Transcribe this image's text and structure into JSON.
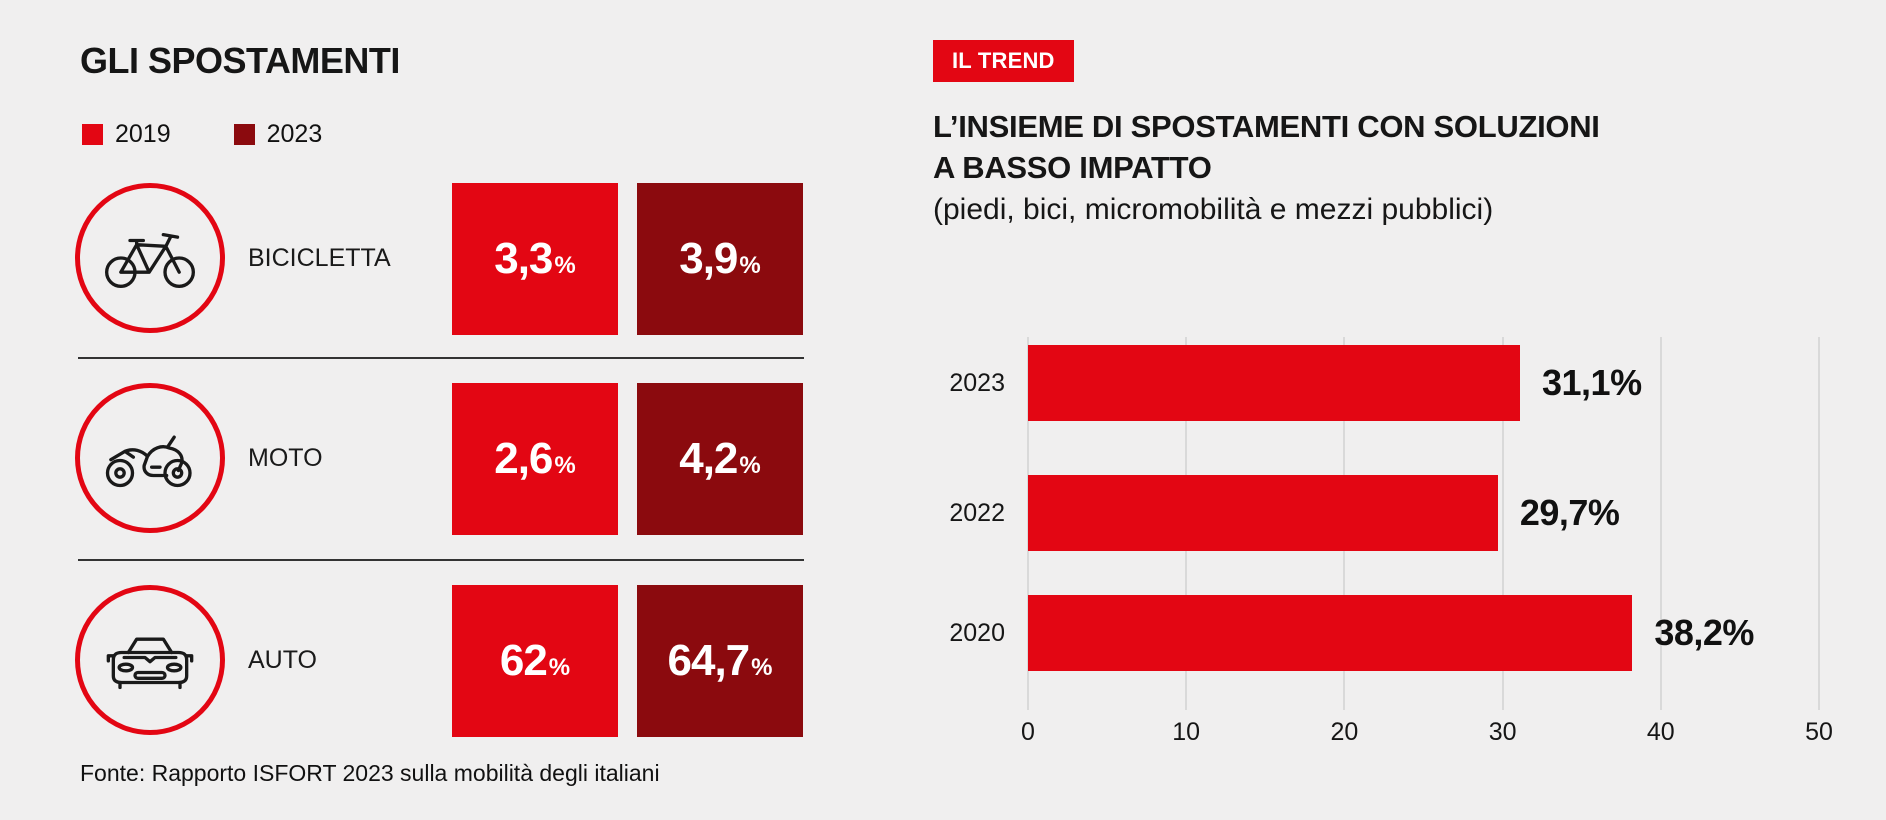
{
  "colors": {
    "red": "#e30613",
    "dark_red": "#8b0a0e",
    "background": "#f0efef",
    "text": "#111111",
    "grid": "#d9d9d9"
  },
  "left": {
    "title": "GLI SPOSTAMENTI",
    "legend": [
      {
        "label": "2019",
        "color": "#e30613"
      },
      {
        "label": "2023",
        "color": "#8b0a0e"
      }
    ],
    "percent_sign": "%",
    "rows": [
      {
        "icon": "bicycle-icon",
        "label": "BICICLETTA",
        "v2019": "3,3",
        "v2023": "3,9"
      },
      {
        "icon": "motorcycle-icon",
        "label": "MOTO",
        "v2019": "2,6",
        "v2023": "4,2"
      },
      {
        "icon": "car-icon",
        "label": "AUTO",
        "v2019": "62",
        "v2023": "64,7"
      }
    ],
    "fonte": "Fonte: Rapporto ISFORT 2023 sulla mobilità degli italiani"
  },
  "right": {
    "badge": "IL TREND",
    "title_line1": "L’INSIEME DI SPOSTAMENTI CON SOLUZIONI",
    "title_line2": "A BASSO IMPATTO",
    "subtitle": "(piedi, bici, micromobilità e mezzi pubblici)"
  },
  "chart_data": [
    {
      "type": "table",
      "title": "GLI SPOSTAMENTI",
      "categories": [
        "BICICLETTA",
        "MOTO",
        "AUTO"
      ],
      "series": [
        {
          "name": "2019",
          "values": [
            3.3,
            2.6,
            62
          ]
        },
        {
          "name": "2023",
          "values": [
            3.9,
            4.2,
            64.7
          ]
        }
      ],
      "unit": "percent",
      "source": "Fonte: Rapporto ISFORT 2023 sulla mobilità degli italiani"
    },
    {
      "type": "bar",
      "orientation": "horizontal",
      "title": "L’INSIEME DI SPOSTAMENTI CON SOLUZIONI A BASSO IMPATTO",
      "subtitle": "(piedi, bici, micromobilità e mezzi pubblici)",
      "categories": [
        "2023",
        "2022",
        "2020"
      ],
      "values": [
        31.1,
        29.7,
        38.2
      ],
      "value_labels": [
        "31,1%",
        "29,7%",
        "38,2%"
      ],
      "xlim": [
        0,
        50
      ],
      "xticks": [
        0,
        10,
        20,
        30,
        40,
        50
      ],
      "bar_color": "#e30613",
      "grid": true,
      "legend_position": "none"
    }
  ]
}
